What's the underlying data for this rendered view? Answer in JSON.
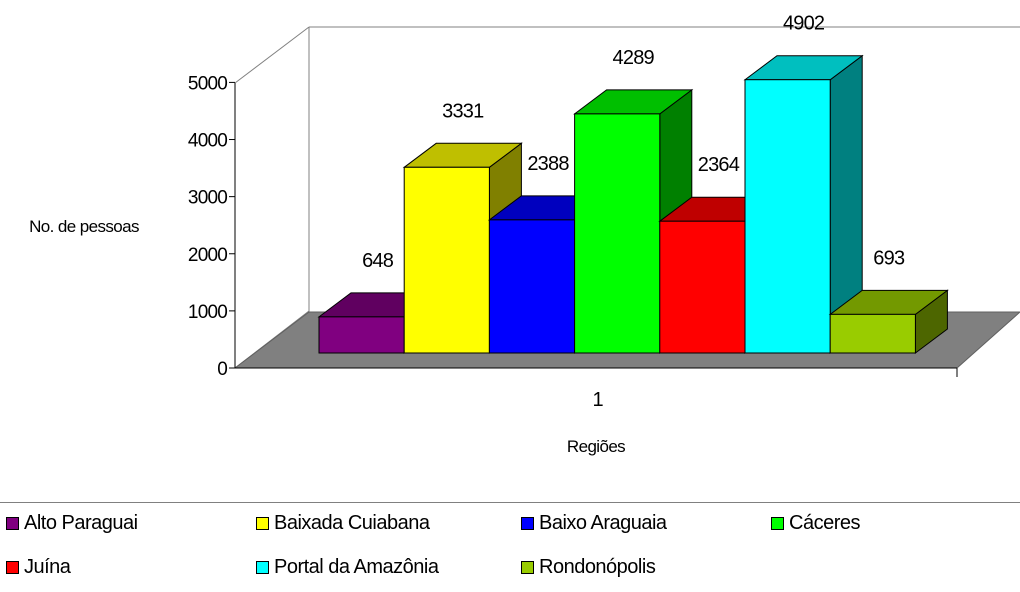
{
  "chart_data": {
    "type": "bar",
    "categories": [
      "1"
    ],
    "series": [
      {
        "name": "Alto Paraguai",
        "values": [
          648
        ],
        "color": "#800080"
      },
      {
        "name": "Baixada Cuiabana",
        "values": [
          3331
        ],
        "color": "#FFFF00"
      },
      {
        "name": "Baixo Araguaia",
        "values": [
          2388
        ],
        "color": "#0000FF"
      },
      {
        "name": "Cáceres",
        "values": [
          4289
        ],
        "color": "#00FF00"
      },
      {
        "name": "Juína",
        "values": [
          2364
        ],
        "color": "#FF0000"
      },
      {
        "name": "Portal da Amazônia",
        "values": [
          4902
        ],
        "color": "#00FFFF"
      },
      {
        "name": "Rondonópolis",
        "values": [
          693
        ],
        "color": "#99CC00"
      }
    ],
    "xlabel": "Regiões",
    "ylabel": "No. de pessoas",
    "ylim": [
      0,
      5000
    ],
    "yticks": [
      "0",
      "1000",
      "2000",
      "3000",
      "4000",
      "5000"
    ],
    "grid": false,
    "legend_position": "bottom",
    "floor_color": "#808080",
    "three_d": true
  }
}
